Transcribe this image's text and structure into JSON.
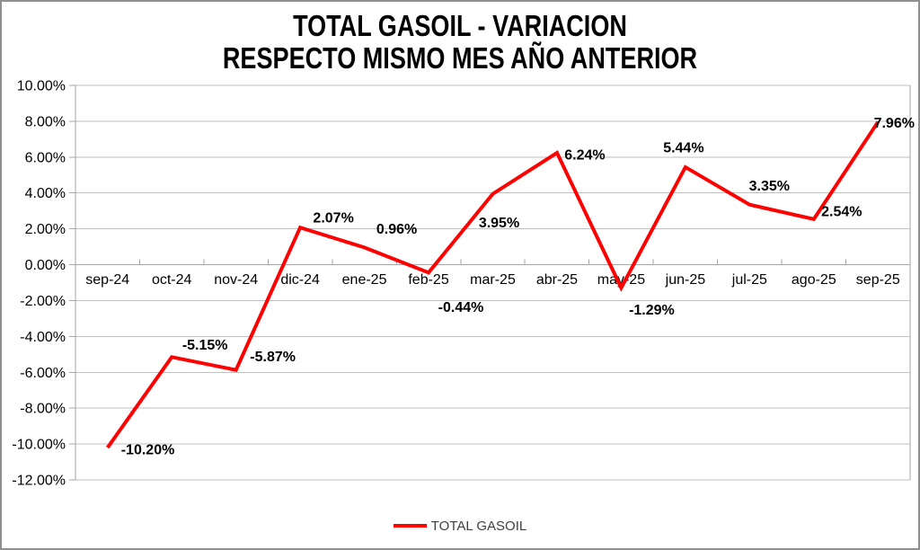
{
  "frame": {
    "background": "#ffffff",
    "border_color": "#8f8f8f"
  },
  "title": {
    "line1": "TOTAL GASOIL - VARIACION",
    "line2": "RESPECTO MISMO MES AÑO ANTERIOR"
  },
  "legend": {
    "label": "TOTAL GASOIL",
    "swatch_color": "#ff0000",
    "text_color": "#404040"
  },
  "chart_data": {
    "type": "line",
    "title": "TOTAL GASOIL - VARIACION RESPECTO MISMO MES AÑO ANTERIOR",
    "categories": [
      "sep-24",
      "oct-24",
      "nov-24",
      "dic-24",
      "ene-25",
      "feb-25",
      "mar-25",
      "abr-25",
      "may-25",
      "jun-25",
      "jul-25",
      "ago-25",
      "sep-25"
    ],
    "series": [
      {
        "name": "TOTAL GASOIL",
        "color": "#ff0000",
        "values": [
          -10.2,
          -5.15,
          -5.87,
          2.07,
          0.96,
          -0.44,
          3.95,
          6.24,
          -1.29,
          5.44,
          3.35,
          2.54,
          7.96
        ]
      }
    ],
    "data_labels": [
      "-10.20%",
      "-5.15%",
      "-5.87%",
      "2.07%",
      "0.96%",
      "-0.44%",
      "3.95%",
      "6.24%",
      "-1.29%",
      "5.44%",
      "3.35%",
      "2.54%",
      "7.96%"
    ],
    "xlabel": "",
    "ylabel": "",
    "y_axis": {
      "min": -12,
      "max": 10,
      "step": 2,
      "format": "percent",
      "tick_labels": [
        "10.00%",
        "8.00%",
        "6.00%",
        "4.00%",
        "2.00%",
        "0.00%",
        "-2.00%",
        "-4.00%",
        "-6.00%",
        "-8.00%",
        "-10.00%",
        "-12.00%"
      ]
    },
    "grid": true,
    "legend_position": "bottom",
    "colors": {
      "line": "#ff0000",
      "gridline": "#bfbfbf",
      "axis": "#a6a6a6",
      "text": "#000000"
    }
  }
}
